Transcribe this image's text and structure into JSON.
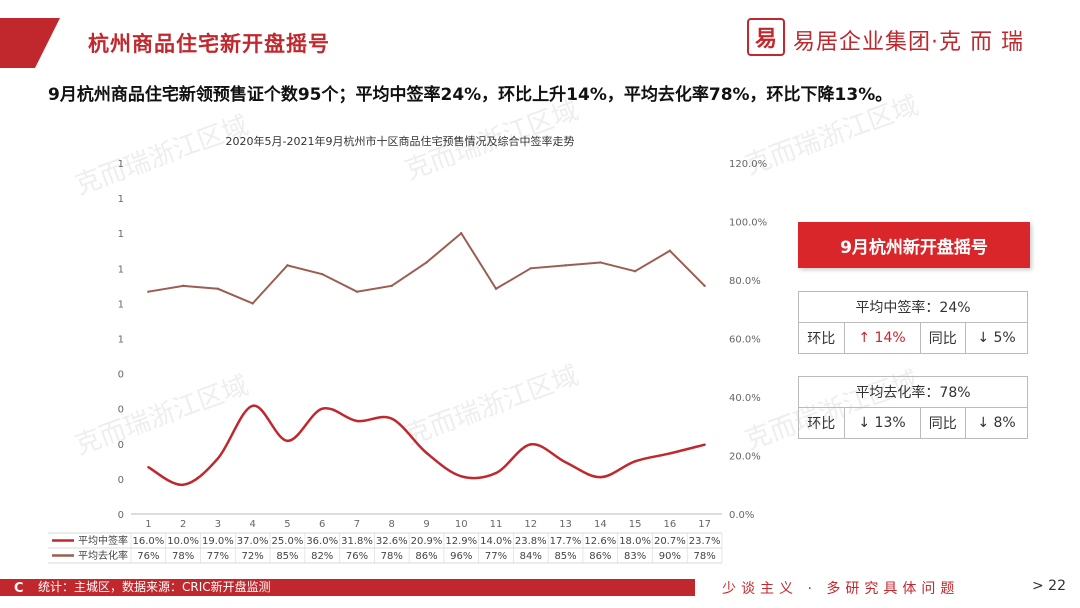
{
  "header": {
    "title": "杭州商品住宅新开盘摇号",
    "logo_mark": "易",
    "logo_text": "易居企业集团·克 而 瑞"
  },
  "summary": "9月杭州商品住宅新领预售证个数95个；平均中签率24%，环比上升14%，平均去化率78%，环比下降13%。",
  "watermark": "克而瑞浙江区域",
  "panel": {
    "title": "9月杭州新开盘摇号",
    "winning": {
      "label": "平均中签率：24%",
      "mom_label": "环比",
      "mom_value": "↑ 14%",
      "yoy_label": "同比",
      "yoy_value": "↓ 5%"
    },
    "sellthrough": {
      "label": "平均去化率：78%",
      "mom_label": "环比",
      "mom_value": "↓ 13%",
      "yoy_label": "同比",
      "yoy_value": "↓ 8%"
    }
  },
  "footer": {
    "left_mark": "C",
    "source": "统计：主城区，数据来源：CRIC新开盘监测",
    "slogan": "少谈主义 · 多研究具体问题",
    "page": "> 22"
  },
  "colors": {
    "accent": "#c0282d",
    "series_winning": "#c0282d",
    "series_sellthrough": "#9b5e52"
  },
  "chart_data": {
    "type": "line",
    "title": "2020年5月-2021年9月杭州市十区商品住宅预售情况及综合中签率走势",
    "categories": [
      "1",
      "2",
      "3",
      "4",
      "5",
      "6",
      "7",
      "8",
      "9",
      "10",
      "11",
      "12",
      "13",
      "14",
      "15",
      "16",
      "17"
    ],
    "series": [
      {
        "name": "平均中签率",
        "values": [
          16.0,
          10.0,
          19.0,
          37.0,
          25.0,
          36.0,
          31.8,
          32.6,
          20.9,
          12.9,
          14.0,
          23.8,
          17.7,
          12.6,
          18.0,
          20.7,
          23.7
        ],
        "labels": [
          "16.0%",
          "10.0%",
          "19.0%",
          "37.0%",
          "25.0%",
          "36.0%",
          "31.8%",
          "32.6%",
          "20.9%",
          "12.9%",
          "14.0%",
          "23.8%",
          "17.7%",
          "12.6%",
          "18.0%",
          "20.7%",
          "23.7%"
        ],
        "color": "#c0282d"
      },
      {
        "name": "平均去化率",
        "values": [
          76,
          78,
          77,
          72,
          85,
          82,
          76,
          78,
          86,
          96,
          77,
          84,
          85,
          86,
          83,
          90,
          78
        ],
        "labels": [
          "76%",
          "78%",
          "77%",
          "72%",
          "85%",
          "82%",
          "76%",
          "78%",
          "86%",
          "96%",
          "77%",
          "84%",
          "85%",
          "86%",
          "83%",
          "90%",
          "78%"
        ],
        "color": "#9b5e52"
      }
    ],
    "y_right_ticks": [
      "0.0%",
      "20.0%",
      "40.0%",
      "60.0%",
      "80.0%",
      "100.0%",
      "120.0%"
    ],
    "y_right_range": [
      0,
      120
    ],
    "y_left_ticks": [
      "0",
      "0",
      "0",
      "0",
      "0",
      "1",
      "1",
      "1",
      "1",
      "1",
      "1"
    ],
    "grid": false,
    "legend": "table-below"
  }
}
